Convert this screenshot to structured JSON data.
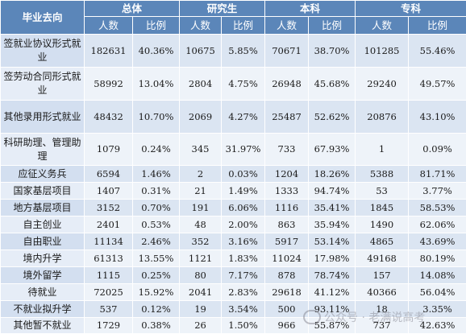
{
  "table": {
    "group_headers": [
      "毕业去向",
      "总体",
      "研究生",
      "本科",
      "专科"
    ],
    "sub_headers": [
      "人数",
      "比例",
      "人数",
      "比例",
      "人数",
      "比例",
      "人数",
      "比例"
    ],
    "rows": [
      [
        "签就业协议形式就业",
        "182631",
        "40.36%",
        "10675",
        "5.85%",
        "70671",
        "38.70%",
        "101285",
        "55.46%"
      ],
      [
        "签劳动合同形式就业",
        "58992",
        "13.04%",
        "2804",
        "4.75%",
        "26948",
        "45.68%",
        "29240",
        "49.57%"
      ],
      [
        "其他录用形式就业",
        "48432",
        "10.70%",
        "2069",
        "4.27%",
        "25487",
        "52.62%",
        "20876",
        "43.10%"
      ],
      [
        "科研助理、管理助理",
        "1079",
        "0.24%",
        "345",
        "31.97%",
        "733",
        "67.93%",
        "1",
        "0.09%"
      ],
      [
        "应征义务兵",
        "6594",
        "1.46%",
        "2",
        "0.03%",
        "1204",
        "18.26%",
        "5388",
        "81.71%"
      ],
      [
        "国家基层项目",
        "1407",
        "0.31%",
        "21",
        "1.49%",
        "1333",
        "94.74%",
        "53",
        "3.77%"
      ],
      [
        "地方基层项目",
        "3152",
        "0.70%",
        "191",
        "6.06%",
        "1116",
        "35.41%",
        "1845",
        "58.53%"
      ],
      [
        "自主创业",
        "2401",
        "0.53%",
        "48",
        "2.00%",
        "863",
        "35.94%",
        "1490",
        "62.06%"
      ],
      [
        "自由职业",
        "11134",
        "2.46%",
        "352",
        "3.16%",
        "5917",
        "53.14%",
        "4865",
        "43.69%"
      ],
      [
        "境内升学",
        "61313",
        "13.55%",
        "1121",
        "1.83%",
        "11024",
        "17.98%",
        "49168",
        "80.19%"
      ],
      [
        "境外留学",
        "1115",
        "0.25%",
        "80",
        "7.17%",
        "878",
        "78.74%",
        "157",
        "14.08%"
      ],
      [
        "待就业",
        "72025",
        "15.92%",
        "2041",
        "2.83%",
        "29618",
        "41.12%",
        "40366",
        "56.04%"
      ],
      [
        "不就业拟升学",
        "537",
        "0.12%",
        "19",
        "3.54%",
        "500",
        "93.11%",
        "18",
        "3.35%"
      ],
      [
        "其他暂不就业",
        "1729",
        "0.38%",
        "26",
        "1.50%",
        "966",
        "55.87%",
        "737",
        "42.63%"
      ]
    ]
  },
  "watermark": {
    "text": "公众号 · 老满说高考",
    "icon": "wechat-icon"
  },
  "colors": {
    "header": "#5b86b9",
    "row_odd": "#dbe5f2",
    "row_even": "#eef3f9"
  }
}
